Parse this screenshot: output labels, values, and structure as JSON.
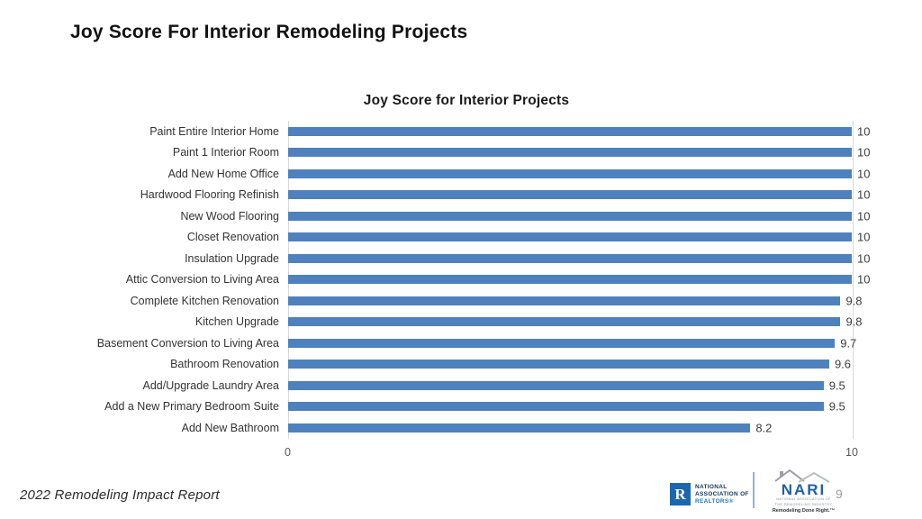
{
  "page": {
    "main_title": "Joy Score For Interior Remodeling Projects",
    "footer_left": "2022 Remodeling Impact Report",
    "page_number": "9"
  },
  "logos": {
    "nar": {
      "box_letter": "R",
      "line1": "NATIONAL",
      "line2": "ASSOCIATION OF",
      "line3": "REALTORS®"
    },
    "nari": {
      "name": "NARI",
      "sub_line1": "NATIONAL ASSOCIATION OF",
      "sub_line2": "THE REMODELING INDUSTRY",
      "tagline": "Remodeling Done Right.™"
    }
  },
  "chart_data": {
    "type": "bar",
    "orientation": "horizontal",
    "title": "Joy Score for Interior Projects",
    "categories": [
      "Paint Entire Interior Home",
      "Paint 1 Interior Room",
      "Add New Home Office",
      "Hardwood Flooring Refinish",
      "New Wood Flooring",
      "Closet Renovation",
      "Insulation Upgrade",
      "Attic Conversion to Living Area",
      "Complete Kitchen Renovation",
      "Kitchen Upgrade",
      "Basement Conversion to Living Area",
      "Bathroom Renovation",
      "Add/Upgrade Laundry Area",
      "Add a New Primary Bedroom Suite",
      "Add New Bathroom"
    ],
    "values": [
      10,
      10,
      10,
      10,
      10,
      10,
      10,
      10,
      9.8,
      9.8,
      9.7,
      9.6,
      9.5,
      9.5,
      8.2
    ],
    "value_labels": [
      "10",
      "10",
      "10",
      "10",
      "10",
      "10",
      "10",
      "10",
      "9.8",
      "9.8",
      "9.7",
      "9.6",
      "9.5",
      "9.5",
      "8.2"
    ],
    "xlim": [
      0,
      10
    ],
    "x_ticks": [
      "0",
      "10"
    ],
    "grid": "vertical lines at 0 and 10 only",
    "legend": "none",
    "bar_color": "#4e81bd",
    "gridline_color": "#d9d9d9"
  }
}
